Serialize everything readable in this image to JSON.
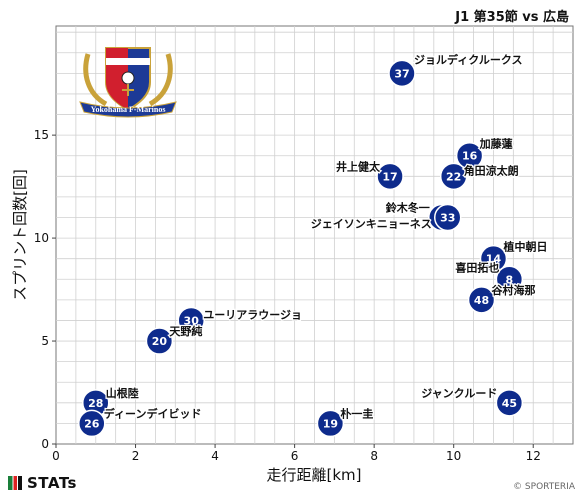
{
  "header": {
    "title": "J1 第35節 vs 広島"
  },
  "footer": {
    "brand": "STATs",
    "credit": "© SPORTERIA"
  },
  "colors": {
    "marker": "#0e2b8c",
    "marker_stroke": "#ffffff",
    "grid": "#d0d0d0",
    "label": "#111111"
  },
  "logo": {
    "name": "yokohama-f-marinos-crest",
    "text": "Yokohama F-Marinos"
  },
  "chart_data": {
    "type": "scatter",
    "xlabel": "走行距離[km]",
    "ylabel": "スプリント回数[回]",
    "xlim": [
      0,
      13
    ],
    "ylim": [
      0,
      20.3
    ],
    "xticks": [
      0,
      2,
      4,
      6,
      8,
      10,
      12
    ],
    "yticks": [
      0,
      5,
      10,
      15
    ],
    "grid": true,
    "points": [
      {
        "number": "37",
        "name": "ジョルディクルークス",
        "x": 8.7,
        "y": 18
      },
      {
        "number": "16",
        "name": "加藤蓮",
        "x": 10.4,
        "y": 14
      },
      {
        "number": "17",
        "name": "井上健太",
        "x": 8.4,
        "y": 13
      },
      {
        "number": "22",
        "name": "角田涼太朗",
        "x": 10.0,
        "y": 13
      },
      {
        "number": "25",
        "name": "鈴木冬一",
        "x": 9.7,
        "y": 11
      },
      {
        "number": "33",
        "name": "ジェイソンキニョーネス",
        "x": 9.85,
        "y": 11
      },
      {
        "number": "14",
        "name": "植中朝日",
        "x": 11.0,
        "y": 9
      },
      {
        "number": "8",
        "name": "喜田拓也",
        "x": 11.4,
        "y": 8
      },
      {
        "number": "48",
        "name": "谷村海那",
        "x": 10.7,
        "y": 7
      },
      {
        "number": "30",
        "name": "ユーリアラウージョ",
        "x": 3.4,
        "y": 6
      },
      {
        "number": "20",
        "name": "天野純",
        "x": 2.6,
        "y": 5
      },
      {
        "number": "28",
        "name": "山根陸",
        "x": 1.0,
        "y": 2
      },
      {
        "number": "26",
        "name": "ディーンデイビッド",
        "x": 0.9,
        "y": 1
      },
      {
        "number": "19",
        "name": "朴一圭",
        "x": 6.9,
        "y": 1
      },
      {
        "number": "45",
        "name": "ジャンクルード",
        "x": 11.4,
        "y": 2
      }
    ]
  }
}
